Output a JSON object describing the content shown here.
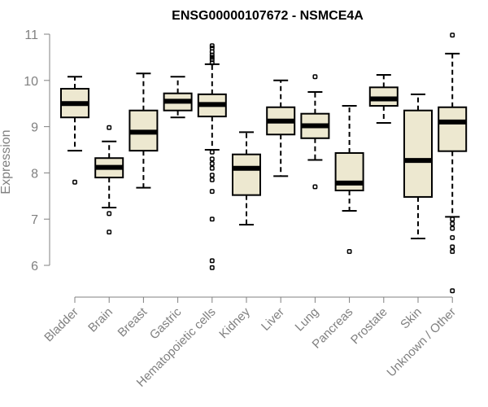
{
  "chart_data": {
    "type": "boxplot",
    "title": "ENSG00000107672 - NSMCE4A",
    "xlabel": "",
    "ylabel": "Expression",
    "ylim": [
      5.3,
      11.2
    ],
    "yticks": [
      6,
      7,
      8,
      9,
      10,
      11
    ],
    "box_color": "#EDE8D0",
    "series": [
      {
        "name": "Bladder",
        "whisker_low": 8.48,
        "q1": 9.2,
        "median": 9.5,
        "q3": 9.82,
        "whisker_high": 10.08,
        "outliers": [
          7.8
        ]
      },
      {
        "name": "Brain",
        "whisker_low": 7.25,
        "q1": 7.9,
        "median": 8.12,
        "q3": 8.32,
        "whisker_high": 8.68,
        "outliers": [
          8.98,
          7.12,
          6.72
        ]
      },
      {
        "name": "Breast",
        "whisker_low": 7.68,
        "q1": 8.48,
        "median": 8.88,
        "q3": 9.35,
        "whisker_high": 10.15,
        "outliers": []
      },
      {
        "name": "Gastric",
        "whisker_low": 9.2,
        "q1": 9.35,
        "median": 9.55,
        "q3": 9.72,
        "whisker_high": 10.08,
        "outliers": []
      },
      {
        "name": "Hematopoietic cells",
        "whisker_low": 8.5,
        "q1": 9.22,
        "median": 9.48,
        "q3": 9.7,
        "whisker_high": 10.35,
        "outliers": [
          10.38,
          10.45,
          10.5,
          10.55,
          10.62,
          10.7,
          10.75,
          8.45,
          8.3,
          8.2,
          8.1,
          7.95,
          7.85,
          7.6,
          7.0,
          6.1,
          5.95
        ]
      },
      {
        "name": "Kidney",
        "whisker_low": 6.88,
        "q1": 7.52,
        "median": 8.1,
        "q3": 8.4,
        "whisker_high": 8.88,
        "outliers": []
      },
      {
        "name": "Liver",
        "whisker_low": 7.93,
        "q1": 8.83,
        "median": 9.12,
        "q3": 9.42,
        "whisker_high": 10.0,
        "outliers": []
      },
      {
        "name": "Lung",
        "whisker_low": 8.28,
        "q1": 8.75,
        "median": 9.02,
        "q3": 9.28,
        "whisker_high": 9.75,
        "outliers": [
          10.08,
          7.7
        ]
      },
      {
        "name": "Pancreas",
        "whisker_low": 7.18,
        "q1": 7.62,
        "median": 7.78,
        "q3": 8.43,
        "whisker_high": 9.45,
        "outliers": [
          6.3
        ]
      },
      {
        "name": "Prostate",
        "whisker_low": 9.08,
        "q1": 9.45,
        "median": 9.6,
        "q3": 9.85,
        "whisker_high": 10.12,
        "outliers": []
      },
      {
        "name": "Skin",
        "whisker_low": 6.58,
        "q1": 7.48,
        "median": 8.27,
        "q3": 9.35,
        "whisker_high": 9.7,
        "outliers": []
      },
      {
        "name": "Unknown / Other",
        "whisker_low": 7.05,
        "q1": 8.47,
        "median": 9.1,
        "q3": 9.42,
        "whisker_high": 10.58,
        "outliers": [
          10.98,
          7.0,
          6.9,
          6.8,
          6.6,
          6.4,
          6.3,
          5.45
        ]
      }
    ]
  }
}
